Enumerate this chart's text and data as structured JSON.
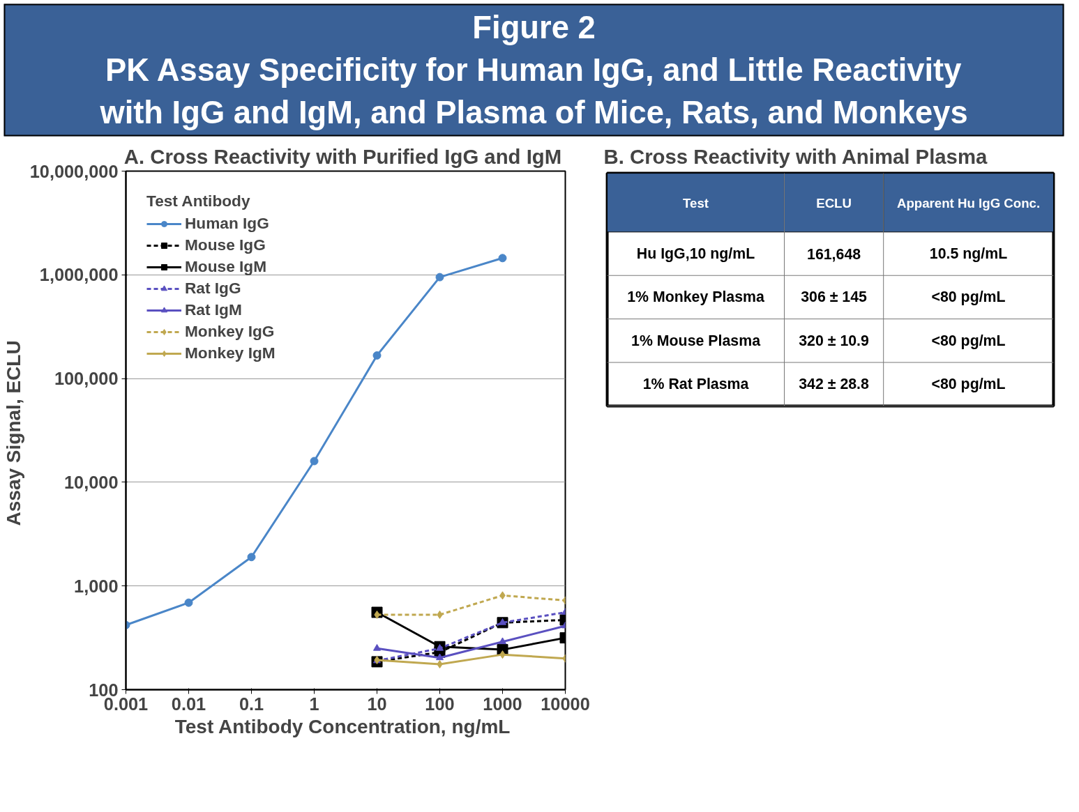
{
  "chart_data": [
    {
      "type": "line",
      "title": "Figure 2\nPK Assay Specificity for Human IgG, and Little Reactivity\nwith IgG and IgM, and Plasma of Mice, Rats, and Monkeys",
      "subtitle": "A.  Cross Reactivity with Purified IgG and IgM",
      "xlabel": "Test Antibody  Concentration, ng/mL",
      "ylabel": "Assay Signal,  ECLU",
      "legend_title": "Test Antibody",
      "log": "xy",
      "grid": "y",
      "legend": "top left",
      "xlim": [
        0.001,
        10000
      ],
      "xticks": [
        0.001,
        0.01,
        0.1,
        1,
        10,
        100,
        1000,
        10000
      ],
      "ylim": [
        100,
        10000000
      ],
      "yticks": [
        {
          "value": 100,
          "label": "100"
        },
        {
          "value": 1000,
          "label": "1,000"
        },
        {
          "value": 10000,
          "label": "10,000"
        },
        {
          "value": 100000,
          "label": "100,000"
        },
        {
          "value": 1000000,
          "label": "1,000,000"
        },
        {
          "value": 10000000,
          "label": "10,000,000"
        }
      ],
      "series": [
        {
          "name": "Human IgG",
          "color": "#4a86c8",
          "marker": "circle",
          "line_style": "solid",
          "x": [
            0.001,
            0.01,
            0.1,
            1,
            10,
            100,
            1000
          ],
          "values": [
            420,
            690,
            1900,
            16000,
            167000,
            950000,
            1450000
          ]
        },
        {
          "name": "Mouse IgG",
          "color": "#000000",
          "marker": "square",
          "line_style": "dashed",
          "x": [
            10,
            100,
            1000,
            10000
          ],
          "values": [
            186,
            230,
            443,
            470
          ]
        },
        {
          "name": "Mouse IgM",
          "color": "#000000",
          "marker": "square",
          "line_style": "solid",
          "x": [
            10,
            100,
            1000,
            10000
          ],
          "values": [
            557,
            260,
            243,
            316
          ]
        },
        {
          "name": "Rat IgG",
          "color": "#5a50c0",
          "marker": "triangle",
          "line_style": "dashed",
          "x": [
            10,
            100,
            1000,
            10000
          ],
          "values": [
            190,
            250,
            443,
            557
          ]
        },
        {
          "name": "Rat IgM",
          "color": "#5a50c0",
          "marker": "triangle",
          "line_style": "solid",
          "x": [
            10,
            100,
            1000,
            10000
          ],
          "values": [
            250,
            203,
            290,
            412
          ]
        },
        {
          "name": "Monkey IgG",
          "color": "#c0a850",
          "marker": "diamond",
          "line_style": "dashed",
          "x": [
            10,
            100,
            1000,
            10000
          ],
          "values": [
            528,
            528,
            810,
            725
          ]
        },
        {
          "name": "Monkey IgM",
          "color": "#c0a850",
          "marker": "diamond",
          "line_style": "solid",
          "x": [
            10,
            100,
            1000,
            10000
          ],
          "values": [
            193,
            176,
            218,
            200
          ]
        }
      ]
    },
    {
      "type": "other",
      "title": "B.  Cross Reactivity with Animal Plasma",
      "categories": [
        "Test",
        "ECLU",
        "Apparent Hu IgG Conc."
      ],
      "cell_labels": [
        [
          "Hu IgG,10 ng/mL",
          "161,648",
          "10.5 ng/mL"
        ],
        [
          "1% Monkey Plasma",
          "306 ± 145",
          "<80 pg/mL"
        ],
        [
          "1% Mouse Plasma",
          "320 ± 10.9",
          "<80 pg/mL"
        ],
        [
          "1% Rat Plasma",
          "342 ± 28.8",
          "<80 pg/mL"
        ]
      ]
    }
  ]
}
